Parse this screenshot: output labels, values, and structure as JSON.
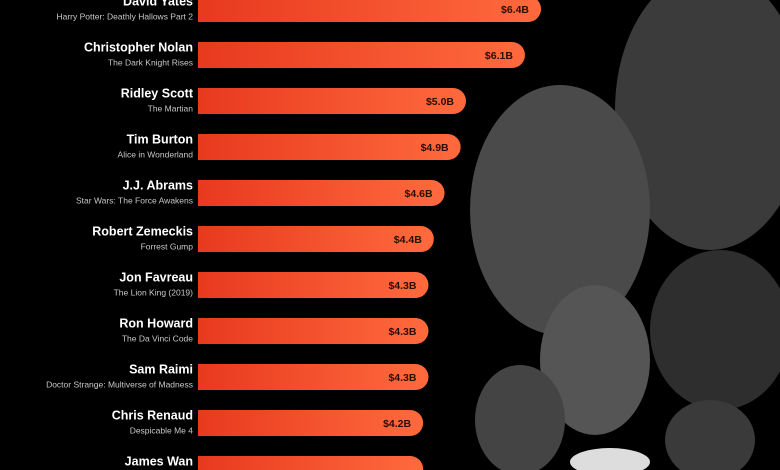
{
  "chart_data": {
    "type": "bar",
    "orientation": "horizontal",
    "categories": [
      "David Yates",
      "Christopher Nolan",
      "Ridley Scott",
      "Tim Burton",
      "J.J. Abrams",
      "Robert Zemeckis",
      "Jon Favreau",
      "Ron Howard",
      "Sam Raimi",
      "Chris Renaud",
      "James Wan"
    ],
    "subtitles": [
      "Harry Potter: Deathly Hallows Part 2",
      "The Dark Knight Rises",
      "The Martian",
      "Alice in Wonderland",
      "Star Wars: The Force Awakens",
      "Forrest Gump",
      "The Lion King (2019)",
      "The Da Vinci Code",
      "Doctor Strange: Multiverse of Madness",
      "Despicable Me 4",
      null
    ],
    "values": [
      6.4,
      6.1,
      5.0,
      4.9,
      4.6,
      4.4,
      4.3,
      4.3,
      4.3,
      4.2,
      4.2
    ],
    "value_labels": [
      "$6.4B",
      "$6.1B",
      "$5.0B",
      "$4.9B",
      "$4.6B",
      "$4.4B",
      "$4.3B",
      "$4.3B",
      "$4.3B",
      "$4.2B",
      null
    ],
    "color": "#f4532e"
  }
}
